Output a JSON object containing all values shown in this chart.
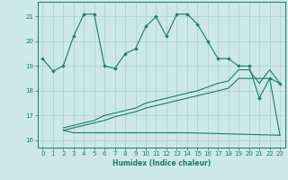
{
  "xlabel": "Humidex (Indice chaleur)",
  "background_color": "#cce8e8",
  "grid_color": "#aacccc",
  "line_color": "#1a7a6a",
  "xlim": [
    -0.5,
    23.5
  ],
  "ylim": [
    15.7,
    21.6
  ],
  "yticks": [
    16,
    17,
    18,
    19,
    20,
    21
  ],
  "xticks": [
    0,
    1,
    2,
    3,
    4,
    5,
    6,
    7,
    8,
    9,
    10,
    11,
    12,
    13,
    14,
    15,
    16,
    17,
    18,
    19,
    20,
    21,
    22,
    23
  ],
  "series1_x": [
    0,
    1,
    2,
    3,
    4,
    5,
    6,
    7,
    8,
    9,
    10,
    11,
    12,
    13,
    14,
    15,
    16,
    17,
    18,
    19,
    20,
    21,
    22,
    23
  ],
  "series1_y": [
    19.3,
    18.8,
    19.0,
    20.2,
    21.1,
    21.1,
    19.0,
    18.9,
    19.5,
    19.7,
    20.6,
    21.0,
    20.2,
    21.1,
    21.1,
    20.7,
    20.0,
    19.3,
    19.3,
    19.0,
    19.0,
    17.7,
    18.5,
    18.3
  ],
  "series2_x": [
    2,
    3,
    4,
    5,
    6,
    7,
    8,
    9,
    10,
    11,
    12,
    13,
    14,
    23
  ],
  "series2_y": [
    16.4,
    16.3,
    16.3,
    16.3,
    16.3,
    16.3,
    16.3,
    16.3,
    16.3,
    16.3,
    16.3,
    16.3,
    16.3,
    16.2
  ],
  "series3_x": [
    2,
    3,
    4,
    5,
    6,
    7,
    8,
    9,
    10,
    11,
    12,
    13,
    14,
    15,
    16,
    17,
    18,
    19,
    20,
    21,
    22,
    23
  ],
  "series3_y": [
    16.5,
    16.6,
    16.7,
    16.8,
    17.0,
    17.1,
    17.2,
    17.3,
    17.5,
    17.6,
    17.7,
    17.8,
    17.9,
    18.0,
    18.15,
    18.3,
    18.4,
    18.85,
    18.85,
    18.3,
    18.85,
    18.3
  ],
  "series4_x": [
    2,
    3,
    4,
    5,
    6,
    7,
    8,
    9,
    10,
    11,
    12,
    13,
    14,
    15,
    16,
    17,
    18,
    19,
    20,
    21,
    22,
    23
  ],
  "series4_y": [
    16.4,
    16.5,
    16.6,
    16.7,
    16.8,
    16.95,
    17.05,
    17.15,
    17.3,
    17.4,
    17.5,
    17.6,
    17.7,
    17.8,
    17.9,
    18.0,
    18.1,
    18.5,
    18.5,
    18.5,
    18.5,
    16.2
  ]
}
